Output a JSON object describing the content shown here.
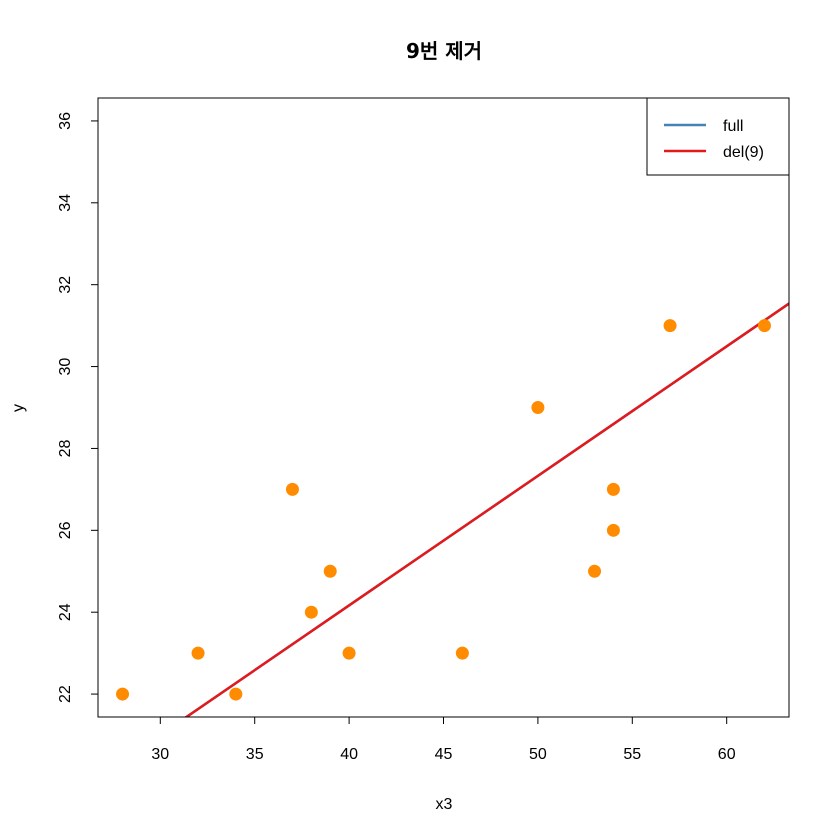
{
  "chart_data": {
    "type": "scatter",
    "title": "9번 제거",
    "xlabel": "x3",
    "ylabel": "y",
    "xlim": [
      26.7,
      63.3
    ],
    "ylim": [
      21.44,
      36.56
    ],
    "x_ticks": [
      30,
      35,
      40,
      45,
      50,
      55,
      60
    ],
    "y_ticks": [
      22,
      24,
      26,
      28,
      30,
      32,
      34,
      36
    ],
    "x_tick_labels": [
      "30",
      "35",
      "40",
      "45",
      "50",
      "55",
      "60"
    ],
    "y_tick_labels": [
      "22",
      "24",
      "26",
      "28",
      "30",
      "32",
      "34",
      "36"
    ],
    "grid": false,
    "points": {
      "color": "#FF8C00",
      "x": [
        28,
        32,
        34,
        37,
        38,
        39,
        40,
        46,
        50,
        53,
        54,
        54,
        57,
        62
      ],
      "y": [
        22,
        23,
        22,
        27,
        24,
        25,
        23,
        23,
        29,
        25,
        26,
        27,
        31,
        31
      ]
    },
    "lines": [
      {
        "name": "full",
        "color": "#4682B4",
        "intercept": 11.51,
        "slope": 0.3164
      },
      {
        "name": "del(9)",
        "color": "#E31A1C",
        "intercept": 11.51,
        "slope": 0.3164
      }
    ],
    "legend": {
      "position": "top-right",
      "entries": [
        {
          "label": "full",
          "color": "#4682B4"
        },
        {
          "label": "del(9)",
          "color": "#E31A1C"
        }
      ]
    }
  }
}
